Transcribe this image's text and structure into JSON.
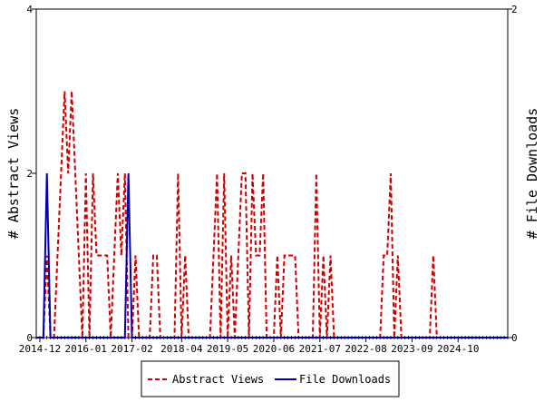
{
  "chart_data": {
    "type": "line",
    "x_tick_labels": [
      "2014-12",
      "2016-01",
      "2017-02",
      "2018-04",
      "2019-05",
      "2020-06",
      "2021-07",
      "2022-08",
      "2023-09",
      "2024-10"
    ],
    "xlim": [
      "2014-11",
      "2025-12"
    ],
    "y_left": {
      "label": "# Abstract Views",
      "ylim": [
        0,
        4
      ],
      "ticks": [
        "0",
        "2",
        "4"
      ]
    },
    "y_right": {
      "label": "# File Downloads",
      "ylim": [
        0,
        2
      ],
      "ticks": [
        "0",
        "2"
      ]
    },
    "legend_position": "bottom",
    "series": [
      {
        "name": "Abstract Views",
        "axis": "left",
        "color": "#cc0000",
        "dash": "dashed",
        "points": [
          [
            "2014-11",
            0
          ],
          [
            "2015-01",
            0
          ],
          [
            "2015-02",
            1
          ],
          [
            "2015-03",
            0
          ],
          [
            "2015-04",
            0
          ],
          [
            "2015-05",
            1
          ],
          [
            "2015-06",
            2
          ],
          [
            "2015-07",
            3
          ],
          [
            "2015-08",
            2
          ],
          [
            "2015-09",
            3
          ],
          [
            "2015-10",
            2
          ],
          [
            "2015-11",
            1
          ],
          [
            "2015-12",
            0
          ],
          [
            "2016-01",
            2
          ],
          [
            "2016-02",
            0
          ],
          [
            "2016-03",
            2
          ],
          [
            "2016-04",
            1
          ],
          [
            "2016-05",
            1
          ],
          [
            "2016-06",
            1
          ],
          [
            "2016-07",
            1
          ],
          [
            "2016-08",
            0
          ],
          [
            "2016-09",
            1
          ],
          [
            "2016-10",
            2
          ],
          [
            "2016-11",
            1
          ],
          [
            "2016-12",
            2
          ],
          [
            "2017-01",
            0
          ],
          [
            "2017-02",
            0
          ],
          [
            "2017-03",
            1
          ],
          [
            "2017-04",
            0
          ],
          [
            "2017-05",
            0
          ],
          [
            "2017-06",
            0
          ],
          [
            "2017-07",
            0
          ],
          [
            "2017-08",
            1
          ],
          [
            "2017-09",
            1
          ],
          [
            "2017-10",
            0
          ],
          [
            "2017-11",
            0
          ],
          [
            "2017-12",
            0
          ],
          [
            "2018-01",
            0
          ],
          [
            "2018-02",
            0
          ],
          [
            "2018-03",
            2
          ],
          [
            "2018-04",
            0
          ],
          [
            "2018-05",
            1
          ],
          [
            "2018-06",
            0
          ],
          [
            "2018-07",
            0
          ],
          [
            "2018-08",
            0
          ],
          [
            "2018-09",
            0
          ],
          [
            "2018-10",
            0
          ],
          [
            "2018-11",
            0
          ],
          [
            "2018-12",
            0
          ],
          [
            "2019-01",
            1
          ],
          [
            "2019-02",
            2
          ],
          [
            "2019-03",
            0
          ],
          [
            "2019-04",
            2
          ],
          [
            "2019-05",
            0
          ],
          [
            "2019-06",
            1
          ],
          [
            "2019-07",
            0
          ],
          [
            "2019-08",
            1
          ],
          [
            "2019-09",
            2
          ],
          [
            "2019-10",
            2
          ],
          [
            "2019-11",
            0
          ],
          [
            "2019-12",
            2
          ],
          [
            "2020-01",
            1
          ],
          [
            "2020-02",
            1
          ],
          [
            "2020-03",
            2
          ],
          [
            "2020-04",
            0
          ],
          [
            "2020-05",
            0
          ],
          [
            "2020-06",
            0
          ],
          [
            "2020-07",
            1
          ],
          [
            "2020-08",
            0
          ],
          [
            "2020-09",
            1
          ],
          [
            "2020-10",
            1
          ],
          [
            "2020-11",
            1
          ],
          [
            "2020-12",
            1
          ],
          [
            "2021-01",
            0
          ],
          [
            "2021-02",
            0
          ],
          [
            "2021-03",
            0
          ],
          [
            "2021-04",
            0
          ],
          [
            "2021-05",
            0
          ],
          [
            "2021-06",
            2
          ],
          [
            "2021-07",
            0
          ],
          [
            "2021-08",
            1
          ],
          [
            "2021-09",
            0
          ],
          [
            "2021-10",
            1
          ],
          [
            "2021-11",
            0
          ],
          [
            "2021-12",
            0
          ],
          [
            "2022-01",
            0
          ],
          [
            "2022-02",
            0
          ],
          [
            "2022-03",
            0
          ],
          [
            "2022-04",
            0
          ],
          [
            "2022-05",
            0
          ],
          [
            "2022-06",
            0
          ],
          [
            "2022-07",
            0
          ],
          [
            "2022-08",
            0
          ],
          [
            "2022-09",
            0
          ],
          [
            "2022-10",
            0
          ],
          [
            "2022-11",
            0
          ],
          [
            "2022-12",
            0
          ],
          [
            "2023-01",
            1
          ],
          [
            "2023-02",
            1
          ],
          [
            "2023-03",
            2
          ],
          [
            "2023-04",
            0
          ],
          [
            "2023-05",
            1
          ],
          [
            "2023-06",
            0
          ],
          [
            "2023-07",
            0
          ],
          [
            "2023-08",
            0
          ],
          [
            "2023-09",
            0
          ],
          [
            "2023-10",
            0
          ],
          [
            "2023-11",
            0
          ],
          [
            "2023-12",
            0
          ],
          [
            "2024-01",
            0
          ],
          [
            "2024-02",
            0
          ],
          [
            "2024-03",
            1
          ],
          [
            "2024-04",
            0
          ],
          [
            "2024-05",
            0
          ],
          [
            "2024-06",
            0
          ],
          [
            "2024-07",
            0
          ],
          [
            "2024-08",
            0
          ],
          [
            "2024-09",
            0
          ],
          [
            "2024-10",
            0
          ],
          [
            "2024-11",
            0
          ],
          [
            "2024-12",
            0
          ],
          [
            "2025-01",
            0
          ],
          [
            "2025-02",
            0
          ],
          [
            "2025-03",
            0
          ],
          [
            "2025-04",
            0
          ],
          [
            "2025-05",
            0
          ],
          [
            "2025-06",
            0
          ],
          [
            "2025-07",
            0
          ],
          [
            "2025-08",
            0
          ],
          [
            "2025-09",
            0
          ],
          [
            "2025-10",
            0
          ],
          [
            "2025-11",
            0
          ],
          [
            "2025-12",
            0
          ]
        ]
      },
      {
        "name": "File Downloads",
        "axis": "right",
        "color": "#0000aa",
        "dash": "solid",
        "points": [
          [
            "2014-11",
            0
          ],
          [
            "2015-01",
            0
          ],
          [
            "2015-02",
            1
          ],
          [
            "2015-03",
            0
          ],
          [
            "2015-04",
            0
          ],
          [
            "2016-12",
            0
          ],
          [
            "2017-01",
            1
          ],
          [
            "2017-02",
            0
          ],
          [
            "2017-03",
            0
          ],
          [
            "2025-12",
            0
          ]
        ]
      }
    ]
  }
}
